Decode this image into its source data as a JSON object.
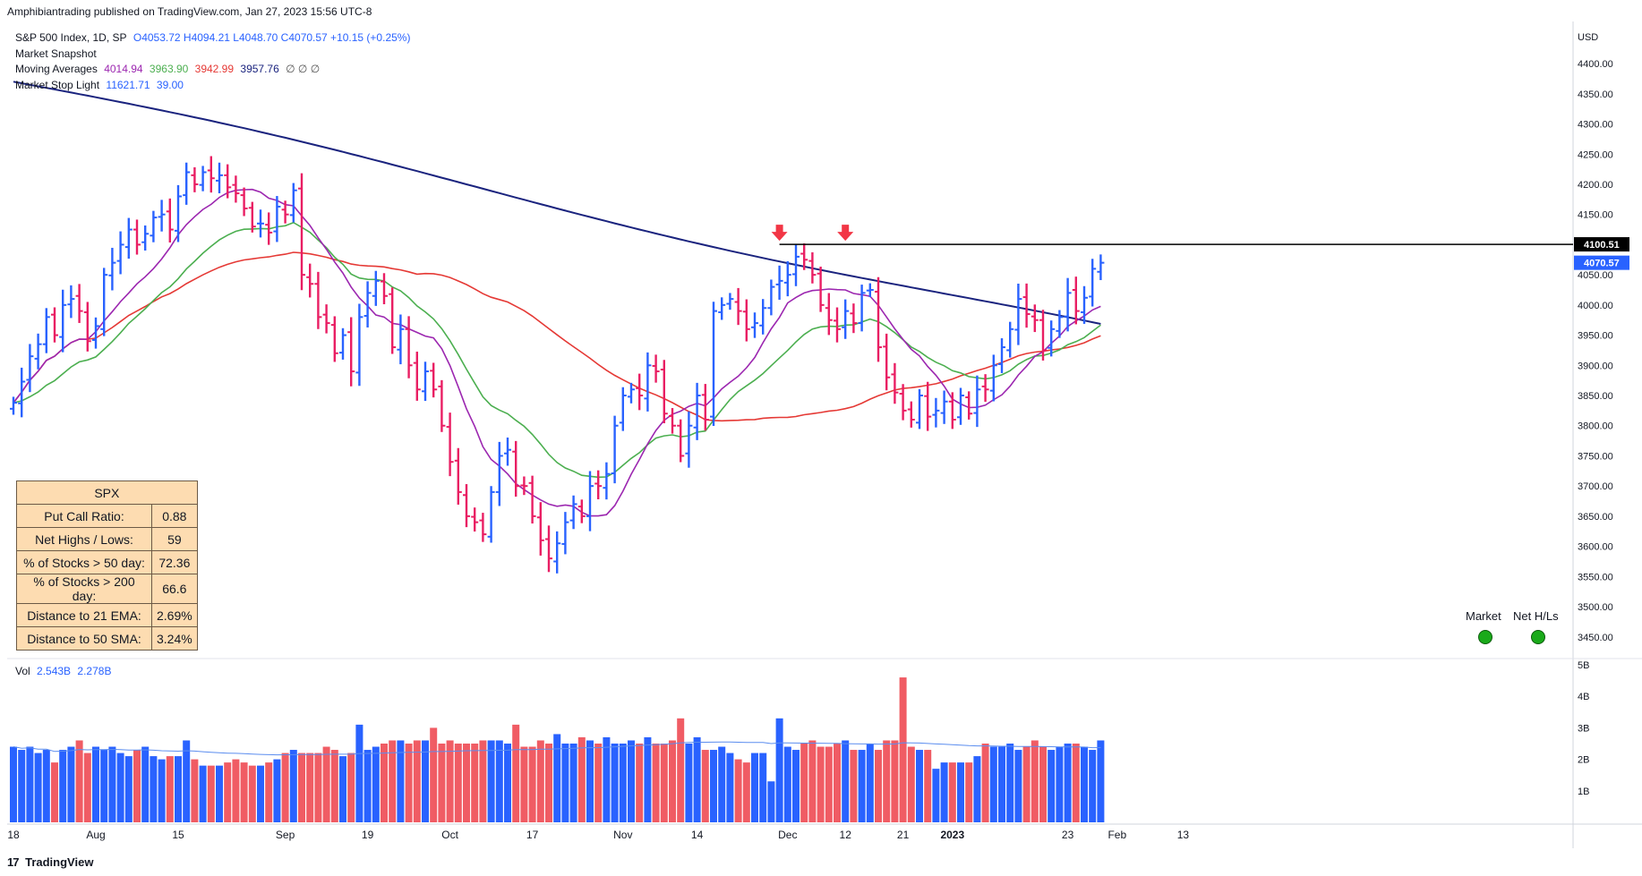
{
  "header": {
    "publisher": "Amphibiantrading published on TradingView.com, Jan 27, 2023 15:56 UTC-8"
  },
  "legend": {
    "symbol": "S&P 500 Index, 1D, SP",
    "ohlc": "O4053.72  H4094.21  L4048.70  C4070.57  +10.15 (+0.25%)",
    "snapshot": "Market Snapshot",
    "ma_label": "Moving Averages",
    "ma_values": [
      "4014.94",
      "3963.90",
      "3942.99",
      "3957.76"
    ],
    "ma_extras": "∅ ∅ ∅",
    "stop_label": "Market Stop Light",
    "stop_values": [
      "11621.71",
      "39.00"
    ]
  },
  "volume": {
    "label": "Vol",
    "values": [
      "2.543B",
      "2.278B"
    ]
  },
  "price_axis": {
    "currency": "USD",
    "ticks": [
      "4400.00",
      "4350.00",
      "4300.00",
      "4250.00",
      "4200.00",
      "4150.00",
      "4100.00",
      "4050.00",
      "4000.00",
      "3950.00",
      "3900.00",
      "3850.00",
      "3800.00",
      "3750.00",
      "3700.00",
      "3650.00",
      "3600.00",
      "3550.00",
      "3500.00",
      "3450.00"
    ],
    "resistance_label": "4100.51",
    "last_label": "4070.57"
  },
  "volume_axis": {
    "ticks": [
      "5B",
      "4B",
      "3B",
      "2B",
      "1B"
    ]
  },
  "time_axis": {
    "labels": [
      {
        "text": "18",
        "bar": 0
      },
      {
        "text": "Aug",
        "bar": 10
      },
      {
        "text": "15",
        "bar": 20
      },
      {
        "text": "Sep",
        "bar": 33
      },
      {
        "text": "19",
        "bar": 43
      },
      {
        "text": "Oct",
        "bar": 53
      },
      {
        "text": "17",
        "bar": 63
      },
      {
        "text": "Nov",
        "bar": 74
      },
      {
        "text": "14",
        "bar": 83
      },
      {
        "text": "Dec",
        "bar": 94
      },
      {
        "text": "12",
        "bar": 101
      },
      {
        "text": "21",
        "bar": 108
      },
      {
        "text": "2023",
        "bar": 114
      },
      {
        "text": "23",
        "bar": 128
      },
      {
        "text": "Feb",
        "bar": 134
      },
      {
        "text": "13",
        "bar": 142
      }
    ]
  },
  "table": {
    "title": "SPX",
    "rows": [
      {
        "label": "Put Call Ratio:",
        "value": "0.88"
      },
      {
        "label": "Net Highs / Lows:",
        "value": "59"
      },
      {
        "label": "% of Stocks > 50 day:",
        "value": "72.36"
      },
      {
        "label": "% of Stocks > 200 day:",
        "value": "66.6"
      },
      {
        "label": "Distance to 21 EMA:",
        "value": "2.69%"
      },
      {
        "label": "Distance to 50 SMA:",
        "value": "3.24%"
      }
    ]
  },
  "indicators": {
    "market": "Market",
    "net": "Net H/Ls"
  },
  "branding": {
    "name": "TradingView",
    "mark": "17"
  },
  "colors": {
    "up": "#2962ff",
    "down": "#e91e63",
    "vol_up": "#2962ff",
    "vol_down": "#f05c64",
    "ma10": "#9c27b0",
    "ma21": "#4caf50",
    "ma50": "#e53935",
    "ma200": "#1a237e",
    "vol_ma": "#5b8def",
    "resistance": "#000000",
    "arrow": "#f23645",
    "signal": "#1aaa1a"
  },
  "chart_data": {
    "type": "ohlc",
    "price_range": [
      3420,
      4455
    ],
    "volume_range_billions": [
      0,
      5
    ],
    "resistance": 4100.51,
    "arrow_bars": [
      93,
      101
    ],
    "close": [
      3838,
      3873,
      3915,
      3935,
      3980,
      3950,
      4000,
      4010,
      3990,
      3940,
      3965,
      4050,
      4070,
      4100,
      4125,
      4100,
      4118,
      4145,
      4150,
      4125,
      4180,
      4220,
      4200,
      4220,
      4210,
      4215,
      4195,
      4185,
      4160,
      4130,
      4135,
      4120,
      4163,
      4150,
      4190,
      4050,
      4035,
      3980,
      3970,
      3920,
      3950,
      3890,
      3980,
      4020,
      4040,
      4015,
      3930,
      3960,
      3900,
      3860,
      3890,
      3860,
      3800,
      3740,
      3690,
      3650,
      3640,
      3620,
      3690,
      3750,
      3760,
      3700,
      3700,
      3650,
      3610,
      3580,
      3605,
      3640,
      3670,
      3650,
      3700,
      3700,
      3720,
      3800,
      3850,
      3860,
      3850,
      3900,
      3890,
      3820,
      3800,
      3750,
      3800,
      3850,
      3810,
      3990,
      4000,
      4010,
      3990,
      3960,
      3970,
      3995,
      4030,
      4040,
      4050,
      4080,
      4075,
      4050,
      4000,
      3975,
      3960,
      3990,
      3970,
      4020,
      4025,
      3930,
      3880,
      3855,
      3825,
      3810,
      3850,
      3815,
      3825,
      3840,
      3810,
      3850,
      3820,
      3860,
      3860,
      3900,
      3930,
      3960,
      4010,
      3985,
      3975,
      3925,
      3960,
      3980,
      4020,
      3990,
      4012,
      4060,
      4070
    ],
    "volume_billions": [
      2.4,
      2.3,
      2.4,
      2.2,
      2.3,
      1.9,
      2.3,
      2.4,
      2.6,
      2.2,
      2.4,
      2.3,
      2.4,
      2.2,
      2.1,
      2.3,
      2.4,
      2.1,
      2.0,
      2.1,
      2.1,
      2.6,
      2.0,
      1.8,
      1.8,
      1.8,
      1.9,
      2.0,
      1.9,
      1.8,
      1.8,
      1.9,
      2.0,
      2.2,
      2.3,
      2.2,
      2.2,
      2.2,
      2.4,
      2.3,
      2.1,
      2.2,
      3.1,
      2.3,
      2.4,
      2.5,
      2.6,
      2.6,
      2.5,
      2.6,
      2.6,
      3.0,
      2.5,
      2.6,
      2.5,
      2.5,
      2.5,
      2.6,
      2.6,
      2.6,
      2.5,
      3.1,
      2.4,
      2.4,
      2.6,
      2.5,
      2.8,
      2.5,
      2.5,
      2.7,
      2.6,
      2.5,
      2.7,
      2.5,
      2.5,
      2.6,
      2.5,
      2.7,
      2.5,
      2.5,
      2.6,
      3.3,
      2.5,
      2.7,
      2.3,
      2.3,
      2.4,
      2.2,
      2.0,
      1.9,
      2.2,
      2.2,
      1.3,
      3.3,
      2.4,
      2.3,
      2.5,
      2.6,
      2.4,
      2.4,
      2.5,
      2.6,
      2.3,
      2.3,
      2.5,
      2.3,
      2.6,
      2.6,
      4.6,
      2.4,
      2.3,
      2.3,
      1.7,
      1.9,
      1.9,
      1.9,
      1.9,
      2.1,
      2.5,
      2.4,
      2.4,
      2.5,
      2.3,
      2.4,
      2.6,
      2.4,
      2.3,
      2.4,
      2.5,
      2.5,
      2.4,
      2.3,
      2.6
    ]
  }
}
